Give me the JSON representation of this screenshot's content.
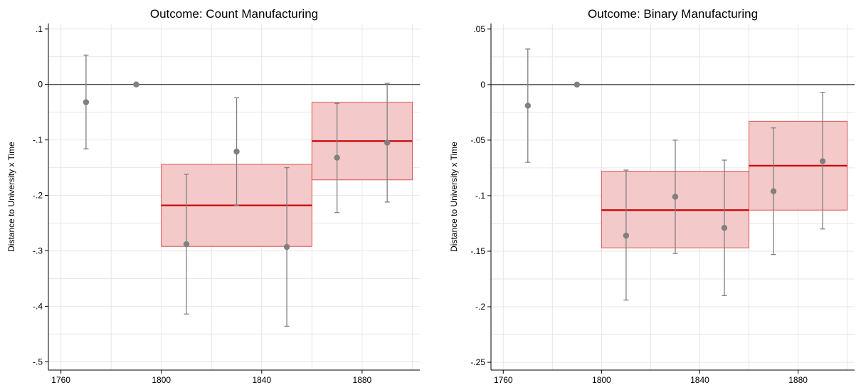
{
  "chart_data": [
    {
      "type": "scatter",
      "title": "Outcome: Count Manufacturing",
      "xlabel": "",
      "ylabel": "Distance to University x Time",
      "xlim": [
        1755,
        1903
      ],
      "ylim": [
        -0.515,
        0.11
      ],
      "xticks": [
        1760,
        1800,
        1840,
        1880
      ],
      "yticks": [
        0.1,
        0,
        -0.1,
        -0.2,
        -0.3,
        -0.4,
        -0.5
      ],
      "ytick_labels": [
        ".1",
        "0",
        "-.1",
        "-.2",
        "-.3",
        "-.4",
        "-.5"
      ],
      "grid": true,
      "reference_line_y": 0,
      "points": [
        {
          "x": 1770,
          "y": -0.032,
          "lo": -0.116,
          "hi": 0.053
        },
        {
          "x": 1790,
          "y": 0.0
        },
        {
          "x": 1810,
          "y": -0.288,
          "lo": -0.414,
          "hi": -0.162
        },
        {
          "x": 1830,
          "y": -0.121,
          "lo": -0.218,
          "hi": -0.024
        },
        {
          "x": 1850,
          "y": -0.293,
          "lo": -0.436,
          "hi": -0.15
        },
        {
          "x": 1870,
          "y": -0.132,
          "lo": -0.231,
          "hi": -0.034
        },
        {
          "x": 1890,
          "y": -0.105,
          "lo": -0.212,
          "hi": 0.002
        }
      ],
      "bands": [
        {
          "x0": 1800,
          "x1": 1860,
          "estimate": -0.218,
          "lo": -0.292,
          "hi": -0.144
        },
        {
          "x0": 1860,
          "x1": 1900,
          "estimate": -0.102,
          "lo": -0.172,
          "hi": -0.032
        }
      ]
    },
    {
      "type": "scatter",
      "title": "Outcome: Binary Manufacturing",
      "xlabel": "",
      "ylabel": "Distance to University x Time",
      "xlim": [
        1755,
        1903
      ],
      "ylim": [
        -0.257,
        0.055
      ],
      "xticks": [
        1760,
        1800,
        1840,
        1880
      ],
      "yticks": [
        0.05,
        0,
        -0.05,
        -0.1,
        -0.15,
        -0.2,
        -0.25
      ],
      "ytick_labels": [
        ".05",
        "0",
        "-.05",
        "-.1",
        "-.15",
        "-.2",
        "-.25"
      ],
      "grid": true,
      "reference_line_y": 0,
      "points": [
        {
          "x": 1770,
          "y": -0.019,
          "lo": -0.07,
          "hi": 0.032
        },
        {
          "x": 1790,
          "y": 0.0
        },
        {
          "x": 1810,
          "y": -0.136,
          "lo": -0.194,
          "hi": -0.077
        },
        {
          "x": 1830,
          "y": -0.101,
          "lo": -0.152,
          "hi": -0.05
        },
        {
          "x": 1850,
          "y": -0.129,
          "lo": -0.19,
          "hi": -0.068
        },
        {
          "x": 1870,
          "y": -0.096,
          "lo": -0.153,
          "hi": -0.039
        },
        {
          "x": 1890,
          "y": -0.069,
          "lo": -0.13,
          "hi": -0.007
        }
      ],
      "bands": [
        {
          "x0": 1800,
          "x1": 1860,
          "estimate": -0.113,
          "lo": -0.147,
          "hi": -0.078
        },
        {
          "x0": 1860,
          "x1": 1900,
          "estimate": -0.073,
          "lo": -0.113,
          "hi": -0.033
        }
      ]
    }
  ],
  "colors": {
    "point": "#808080",
    "errorbar": "#808080",
    "band_fill": "#f4c9ca",
    "band_edge": "#d9534f",
    "band_line": "#cc0000",
    "grid": "#e6e6e6",
    "zero_line": "#333333",
    "axis": "#000000"
  }
}
